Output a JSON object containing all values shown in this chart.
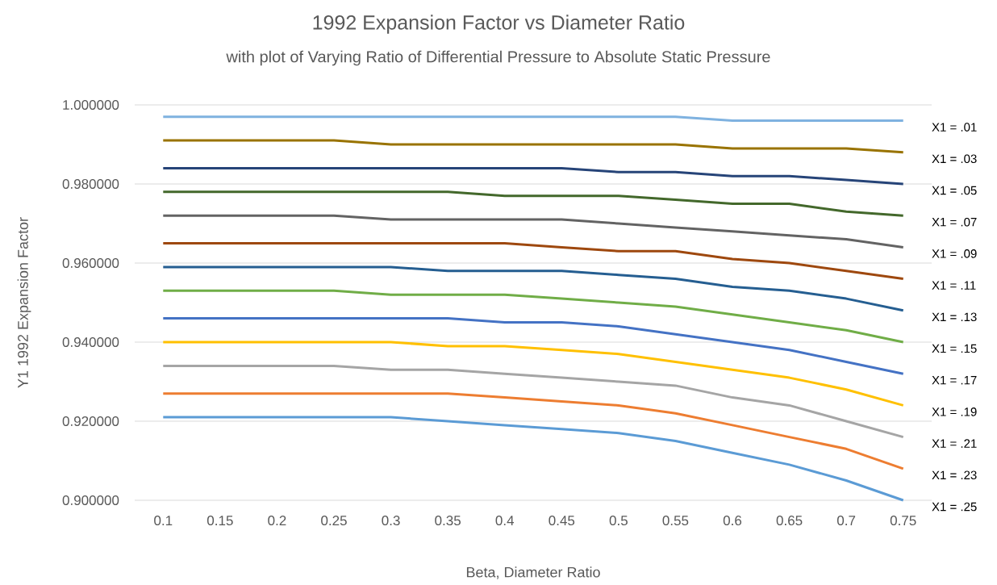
{
  "chart_data": {
    "type": "line",
    "title": "1992 Expansion Factor vs Diameter Ratio",
    "subtitle": "with plot of Varying Ratio of Differential Pressure to Absolute Static Pressure",
    "xlabel": "Beta, Diameter Ratio",
    "ylabel": "Y1 1992 Expansion Factor",
    "categories": [
      "0.1",
      "0.15",
      "0.2",
      "0.25",
      "0.3",
      "0.35",
      "0.4",
      "0.45",
      "0.5",
      "0.55",
      "0.6",
      "0.65",
      "0.7",
      "0.75"
    ],
    "ylim": [
      0.9,
      1.0
    ],
    "yticks": [
      {
        "value": 0.9,
        "label": "0.900000"
      },
      {
        "value": 0.92,
        "label": "0.920000"
      },
      {
        "value": 0.94,
        "label": "0.940000"
      },
      {
        "value": 0.96,
        "label": "0.960000"
      },
      {
        "value": 0.98,
        "label": "0.980000"
      },
      {
        "value": 1.0,
        "label": "1.000000"
      }
    ],
    "grid": "y",
    "series": [
      {
        "name": "X1 = .01",
        "color": "#7fb2e0",
        "values": [
          0.997,
          0.997,
          0.997,
          0.997,
          0.997,
          0.997,
          0.997,
          0.997,
          0.997,
          0.997,
          0.996,
          0.996,
          0.996,
          0.996
        ]
      },
      {
        "name": "X1 = .03",
        "color": "#997300",
        "values": [
          0.991,
          0.991,
          0.991,
          0.991,
          0.99,
          0.99,
          0.99,
          0.99,
          0.99,
          0.99,
          0.989,
          0.989,
          0.989,
          0.988
        ]
      },
      {
        "name": "X1 = .05",
        "color": "#264478",
        "values": [
          0.984,
          0.984,
          0.984,
          0.984,
          0.984,
          0.984,
          0.984,
          0.984,
          0.983,
          0.983,
          0.982,
          0.982,
          0.981,
          0.98
        ]
      },
      {
        "name": "X1 = .07",
        "color": "#43682b",
        "values": [
          0.978,
          0.978,
          0.978,
          0.978,
          0.978,
          0.978,
          0.977,
          0.977,
          0.977,
          0.976,
          0.975,
          0.975,
          0.973,
          0.972
        ]
      },
      {
        "name": "X1 = .09",
        "color": "#636363",
        "values": [
          0.972,
          0.972,
          0.972,
          0.972,
          0.971,
          0.971,
          0.971,
          0.971,
          0.97,
          0.969,
          0.968,
          0.967,
          0.966,
          0.964
        ]
      },
      {
        "name": "X1 = .11",
        "color": "#9e480e",
        "values": [
          0.965,
          0.965,
          0.965,
          0.965,
          0.965,
          0.965,
          0.965,
          0.964,
          0.963,
          0.963,
          0.961,
          0.96,
          0.958,
          0.956
        ]
      },
      {
        "name": "X1 = .13",
        "color": "#255e91",
        "values": [
          0.959,
          0.959,
          0.959,
          0.959,
          0.959,
          0.958,
          0.958,
          0.958,
          0.957,
          0.956,
          0.954,
          0.953,
          0.951,
          0.948
        ]
      },
      {
        "name": "X1 = .15",
        "color": "#70ad47",
        "values": [
          0.953,
          0.953,
          0.953,
          0.953,
          0.952,
          0.952,
          0.952,
          0.951,
          0.95,
          0.949,
          0.947,
          0.945,
          0.943,
          0.94
        ]
      },
      {
        "name": "X1 = .17",
        "color": "#4472c4",
        "values": [
          0.946,
          0.946,
          0.946,
          0.946,
          0.946,
          0.946,
          0.945,
          0.945,
          0.944,
          0.942,
          0.94,
          0.938,
          0.935,
          0.932
        ]
      },
      {
        "name": "X1 = .19",
        "color": "#ffc000",
        "values": [
          0.94,
          0.94,
          0.94,
          0.94,
          0.94,
          0.939,
          0.939,
          0.938,
          0.937,
          0.935,
          0.933,
          0.931,
          0.928,
          0.924
        ]
      },
      {
        "name": "X1 = .21",
        "color": "#a5a5a5",
        "values": [
          0.934,
          0.934,
          0.934,
          0.934,
          0.933,
          0.933,
          0.932,
          0.931,
          0.93,
          0.929,
          0.926,
          0.924,
          0.92,
          0.916
        ]
      },
      {
        "name": "X1 = .23",
        "color": "#ed7d31",
        "values": [
          0.927,
          0.927,
          0.927,
          0.927,
          0.927,
          0.927,
          0.926,
          0.925,
          0.924,
          0.922,
          0.919,
          0.916,
          0.913,
          0.908
        ]
      },
      {
        "name": "X1 = .25",
        "color": "#5b9bd5",
        "values": [
          0.921,
          0.921,
          0.921,
          0.921,
          0.921,
          0.92,
          0.919,
          0.918,
          0.917,
          0.915,
          0.912,
          0.909,
          0.905,
          0.9
        ]
      }
    ]
  }
}
